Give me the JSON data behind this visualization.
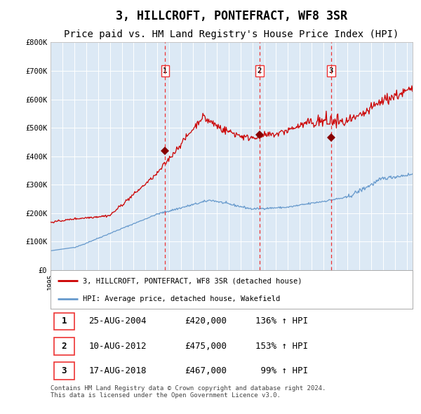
{
  "title": "3, HILLCROFT, PONTEFRACT, WF8 3SR",
  "subtitle": "Price paid vs. HM Land Registry's House Price Index (HPI)",
  "title_fontsize": 12,
  "subtitle_fontsize": 10,
  "background_color": "#dce9f5",
  "plot_bg_color": "#dce9f5",
  "ylim": [
    0,
    800000
  ],
  "yticks": [
    0,
    100000,
    200000,
    300000,
    400000,
    500000,
    600000,
    700000,
    800000
  ],
  "ytick_labels": [
    "£0",
    "£100K",
    "£200K",
    "£300K",
    "£400K",
    "£500K",
    "£600K",
    "£700K",
    "£800K"
  ],
  "xmin": 1995.0,
  "xmax": 2025.5,
  "red_line_color": "#cc0000",
  "blue_line_color": "#6699cc",
  "sale_color": "#880000",
  "vline_color": "#ee3333",
  "sales": [
    {
      "label": "1",
      "date_x": 2004.65,
      "price": 420000
    },
    {
      "label": "2",
      "date_x": 2012.61,
      "price": 475000
    },
    {
      "label": "3",
      "date_x": 2018.63,
      "price": 467000
    }
  ],
  "legend_red_label": "3, HILLCROFT, PONTEFRACT, WF8 3SR (detached house)",
  "legend_blue_label": "HPI: Average price, detached house, Wakefield",
  "table_rows": [
    {
      "num": "1",
      "date": "25-AUG-2004",
      "price": "£420,000",
      "hpi": "136% ↑ HPI"
    },
    {
      "num": "2",
      "date": "10-AUG-2012",
      "price": "£475,000",
      "hpi": "153% ↑ HPI"
    },
    {
      "num": "3",
      "date": "17-AUG-2018",
      "price": "£467,000",
      "hpi": " 99% ↑ HPI"
    }
  ],
  "footer": "Contains HM Land Registry data © Crown copyright and database right 2024.\nThis data is licensed under the Open Government Licence v3.0."
}
